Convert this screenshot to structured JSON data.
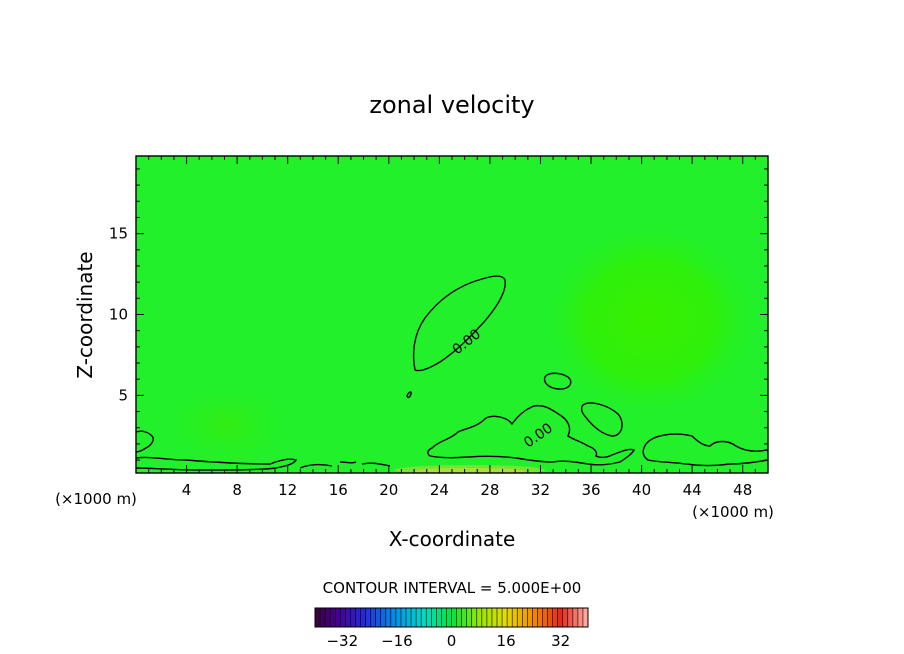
{
  "chart_data": {
    "type": "contour",
    "title": "zonal velocity",
    "xlabel": "X-coordinate",
    "ylabel": "Z-coordinate",
    "x_unit_note": "(×1000 m)",
    "z_unit_note": "(×1000 m)",
    "xlim": [
      0,
      50
    ],
    "ylim": [
      0.2,
      19.8
    ],
    "x_ticks": [
      4,
      8,
      12,
      16,
      20,
      24,
      28,
      32,
      36,
      40,
      44,
      48
    ],
    "x_tick_labels": [
      "4",
      "8",
      "12",
      "16",
      "20",
      "24",
      "28",
      "32",
      "36",
      "40",
      "44",
      "48"
    ],
    "y_ticks": [
      5,
      10,
      15
    ],
    "y_tick_labels": [
      "5",
      "10",
      "15"
    ],
    "contour_interval_label": "CONTOUR INTERVAL = 5.000E+00",
    "contour_labels": [
      "0.00",
      "0.00"
    ],
    "colorbar": {
      "min": -40,
      "max": 40,
      "ticks": [
        -32,
        -16,
        0,
        16,
        32
      ],
      "tick_labels": [
        "−32",
        "−16",
        "0",
        "16",
        "32"
      ]
    },
    "field_note": "values near 0 everywhere; background ~+0.5, slightly positive lobes near x=8,z=2 and x=40,z=11"
  }
}
